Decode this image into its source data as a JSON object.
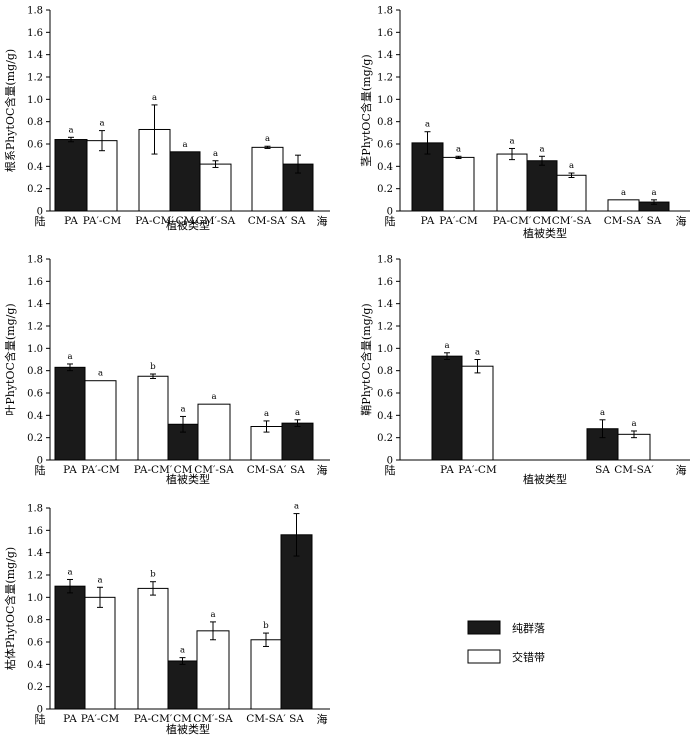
{
  "legend": {
    "pure": {
      "label": "纯群落",
      "color": "#1a1a1a"
    },
    "ecotone": {
      "label": "交错带",
      "color": "#ffffff"
    }
  },
  "axis": {
    "land_label": "陆",
    "sea_label": "海",
    "ylim": [
      0,
      1.8
    ],
    "yticks": [
      "0",
      "0.2",
      "0.4",
      "0.6",
      "0.8",
      "1.0",
      "1.2",
      "1.4",
      "1.6",
      "1.8"
    ]
  },
  "chart_data": [
    {
      "id": "root",
      "type": "bar",
      "ylabel": "根系PhytOC含量(mg/g)",
      "xlabel": "植被类型",
      "ylim": [
        0,
        1.8
      ],
      "categories": [
        "PA",
        "PA′-CM",
        "PA-CM′",
        "CM",
        "CM′-SA",
        "CM-SA′",
        "SA"
      ],
      "bars": [
        {
          "category": "PA",
          "group": "pure",
          "value": 0.64,
          "error": 0.02,
          "sig": "a"
        },
        {
          "category": "PA′-CM",
          "group": "ecotone",
          "value": 0.63,
          "error": 0.09,
          "sig": "a"
        },
        {
          "category": "PA-CM′",
          "group": "ecotone",
          "value": 0.73,
          "error": 0.22,
          "sig": "a"
        },
        {
          "category": "CM",
          "group": "pure",
          "value": 0.53,
          "error": 0.0,
          "sig": "a"
        },
        {
          "category": "CM′-SA",
          "group": "ecotone",
          "value": 0.42,
          "error": 0.03,
          "sig": "a"
        },
        {
          "category": "CM-SA′",
          "group": "ecotone",
          "value": 0.57,
          "error": 0.01,
          "sig": "a"
        },
        {
          "category": "SA",
          "group": "pure",
          "value": 0.42,
          "error": 0.08,
          "sig": ""
        }
      ]
    },
    {
      "id": "stem",
      "type": "bar",
      "ylabel": "茎PhytOC含量(mg/g)",
      "xlabel": "植被类型",
      "ylim": [
        0,
        1.8
      ],
      "categories": [
        "PA",
        "PA′-CM",
        "PA-CM′",
        "CM",
        "CM′-SA",
        "CM-SA′",
        "SA"
      ],
      "bars": [
        {
          "category": "PA",
          "group": "pure",
          "value": 0.61,
          "error": 0.1,
          "sig": "a"
        },
        {
          "category": "PA′-CM",
          "group": "ecotone",
          "value": 0.48,
          "error": 0.01,
          "sig": "a"
        },
        {
          "category": "PA-CM′",
          "group": "ecotone",
          "value": 0.51,
          "error": 0.05,
          "sig": "a"
        },
        {
          "category": "CM",
          "group": "pure",
          "value": 0.45,
          "error": 0.04,
          "sig": "a"
        },
        {
          "category": "CM′-SA",
          "group": "ecotone",
          "value": 0.32,
          "error": 0.02,
          "sig": "a"
        },
        {
          "category": "CM-SA′",
          "group": "ecotone",
          "value": 0.1,
          "error": 0.0,
          "sig": "a"
        },
        {
          "category": "SA",
          "group": "pure",
          "value": 0.08,
          "error": 0.02,
          "sig": "a"
        }
      ]
    },
    {
      "id": "leaf",
      "type": "bar",
      "ylabel": "叶PhytOC含量(mg/g)",
      "xlabel": "植被类型",
      "ylim": [
        0,
        1.8
      ],
      "categories": [
        "PA",
        "PA′-CM",
        "PA-CM′",
        "CM",
        "CM′-SA",
        "CM-SA′",
        "SA"
      ],
      "bars": [
        {
          "category": "PA",
          "group": "pure",
          "value": 0.83,
          "error": 0.03,
          "sig": "a"
        },
        {
          "category": "PA′-CM",
          "group": "ecotone",
          "value": 0.71,
          "error": 0.0,
          "sig": "a"
        },
        {
          "category": "PA-CM′",
          "group": "ecotone",
          "value": 0.75,
          "error": 0.02,
          "sig": "b"
        },
        {
          "category": "CM",
          "group": "pure",
          "value": 0.32,
          "error": 0.07,
          "sig": "a"
        },
        {
          "category": "CM′-SA",
          "group": "ecotone",
          "value": 0.5,
          "error": 0.0,
          "sig": "a"
        },
        {
          "category": "CM-SA′",
          "group": "ecotone",
          "value": 0.3,
          "error": 0.05,
          "sig": "a"
        },
        {
          "category": "SA",
          "group": "pure",
          "value": 0.33,
          "error": 0.03,
          "sig": "a"
        }
      ]
    },
    {
      "id": "sheath",
      "type": "bar",
      "ylabel": "鞘PhytOC含量(mg/g)",
      "xlabel": "植被类型",
      "ylim": [
        0,
        1.8
      ],
      "categories": [
        "PA",
        "PA′-CM",
        "SA",
        "CM-SA′"
      ],
      "bars": [
        {
          "category": "PA",
          "group": "pure",
          "value": 0.93,
          "error": 0.03,
          "sig": "a"
        },
        {
          "category": "PA′-CM",
          "group": "ecotone",
          "value": 0.84,
          "error": 0.06,
          "sig": "a"
        },
        {
          "category": "SA",
          "group": "pure",
          "value": 0.28,
          "error": 0.08,
          "sig": "a"
        },
        {
          "category": "CM-SA′",
          "group": "ecotone",
          "value": 0.23,
          "error": 0.03,
          "sig": "a"
        }
      ]
    },
    {
      "id": "litter",
      "type": "bar",
      "ylabel": "枯体PhytOC含量(mg/g)",
      "xlabel": "植被类型",
      "ylim": [
        0,
        1.8
      ],
      "categories": [
        "PA",
        "PA′-CM",
        "PA-CM′",
        "CM",
        "CM′-SA",
        "CM-SA′",
        "SA"
      ],
      "bars": [
        {
          "category": "PA",
          "group": "pure",
          "value": 1.1,
          "error": 0.06,
          "sig": "a"
        },
        {
          "category": "PA′-CM",
          "group": "ecotone",
          "value": 1.0,
          "error": 0.09,
          "sig": "a"
        },
        {
          "category": "PA-CM′",
          "group": "ecotone",
          "value": 1.08,
          "error": 0.06,
          "sig": "b"
        },
        {
          "category": "CM",
          "group": "pure",
          "value": 0.43,
          "error": 0.03,
          "sig": "a"
        },
        {
          "category": "CM′-SA",
          "group": "ecotone",
          "value": 0.7,
          "error": 0.08,
          "sig": "a"
        },
        {
          "category": "CM-SA′",
          "group": "ecotone",
          "value": 0.62,
          "error": 0.06,
          "sig": "b"
        },
        {
          "category": "SA",
          "group": "pure",
          "value": 1.56,
          "error": 0.19,
          "sig": "a"
        }
      ]
    }
  ]
}
